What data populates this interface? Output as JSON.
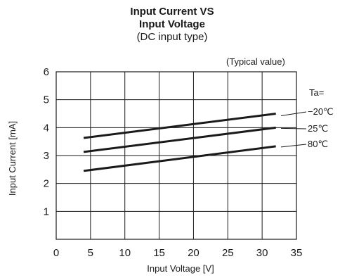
{
  "chart_data": {
    "type": "line",
    "title_lines": [
      "Input Current VS",
      "Input Voltage"
    ],
    "subtitle": "(DC input type)",
    "note": "(Typical value)",
    "xlabel": "Input Voltage [V]",
    "ylabel": "Input Current [mA]",
    "xlim": [
      0,
      35
    ],
    "ylim": [
      0,
      6
    ],
    "x_ticks": [
      0,
      5,
      10,
      15,
      20,
      25,
      30,
      35
    ],
    "y_ticks": [
      1,
      2,
      3,
      4,
      5,
      6
    ],
    "grid": true,
    "legend_title": "Ta=",
    "legend_placement": "right",
    "series": [
      {
        "name": "−20℃",
        "x": [
          4,
          32
        ],
        "y": [
          3.63,
          4.5
        ]
      },
      {
        "name": "25℃",
        "x": [
          4,
          32
        ],
        "y": [
          3.13,
          4.0
        ]
      },
      {
        "name": "80℃",
        "x": [
          4,
          32
        ],
        "y": [
          2.45,
          3.33
        ]
      }
    ]
  }
}
